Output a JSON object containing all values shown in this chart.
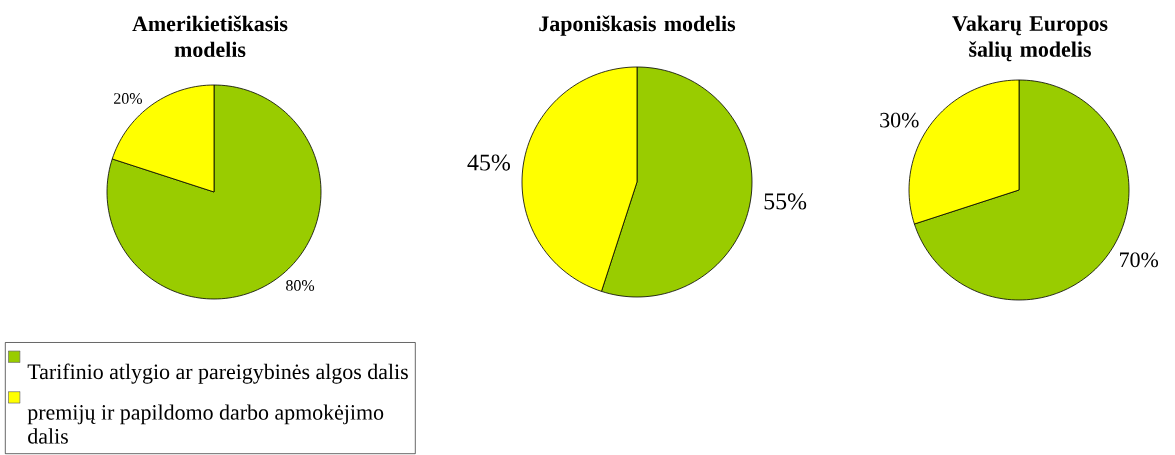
{
  "chart_data": [
    {
      "type": "pie",
      "title": "Amerikietiškasis modelis",
      "categories": [
        "Tarifinio atlygio ar pareigybinės algos dalis",
        "premijų ir papildomo darbo apmokėjimo dalis"
      ],
      "values": [
        80,
        20
      ],
      "colors": [
        "#99cc00",
        "#ffff00"
      ],
      "value_labels": [
        "80%",
        "20%"
      ],
      "legend": "bottom left"
    },
    {
      "type": "pie",
      "title": "Japoniškasis modelis",
      "categories": [
        null,
        null
      ],
      "values": [
        55,
        45
      ],
      "colors": [
        "#99cc00",
        "#ffff00"
      ],
      "value_labels": [
        "55%",
        "45%"
      ]
    },
    {
      "type": "pie",
      "title": "Vakarų Europos šalių modelis",
      "categories": [
        null,
        null
      ],
      "values": [
        70,
        30
      ],
      "colors": [
        "#99cc00",
        "#ffff00"
      ],
      "value_labels": [
        "70%",
        "30%"
      ]
    }
  ]
}
